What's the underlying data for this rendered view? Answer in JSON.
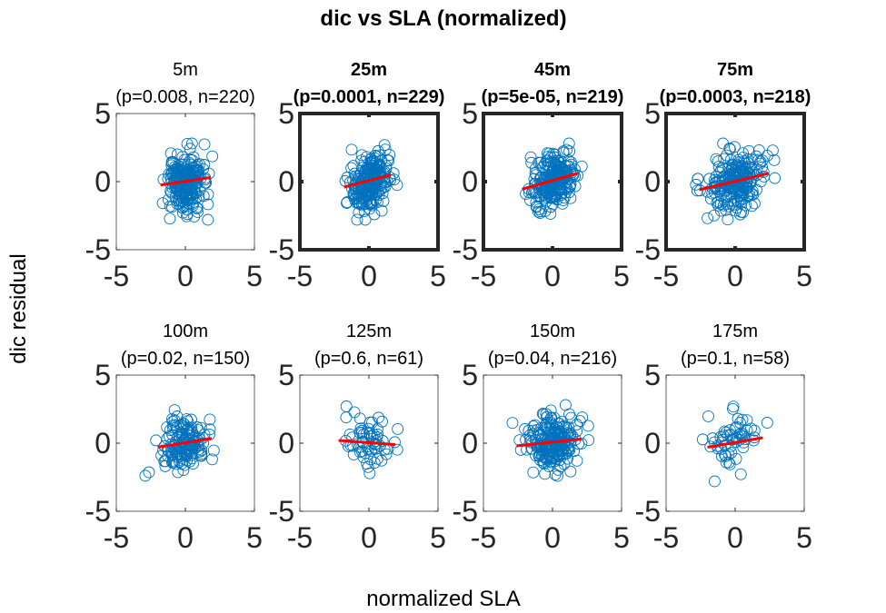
{
  "figure": {
    "title": "dic vs SLA (normalized)",
    "xlabel": "normalized SLA",
    "ylabel": "dic residual"
  },
  "colors": {
    "marker": "#0072BD",
    "fit_line": "#FF0000",
    "axes": "#262626",
    "background": "#FFFFFF"
  },
  "chart_data": [
    {
      "type": "scatter",
      "depth": "5m",
      "subtitle": "(p=0.008, n=220)",
      "bold": false,
      "n": 220,
      "fit": {
        "x": [
          -1.8,
          1.8
        ],
        "y": [
          -0.25,
          0.3
        ]
      },
      "cloud": {
        "sx": 0.75,
        "sy": 1.05,
        "r": 0.15
      },
      "xlim": [
        -5,
        5
      ],
      "ylim": [
        -5,
        5
      ],
      "xticks": [
        "-5",
        "0",
        "5"
      ],
      "yticks": [
        "5",
        "0",
        "-5"
      ]
    },
    {
      "type": "scatter",
      "depth": "25m",
      "subtitle": "(p=0.0001, n=229)",
      "bold": true,
      "n": 229,
      "fit": {
        "x": [
          -1.8,
          1.6
        ],
        "y": [
          -0.4,
          0.5
        ]
      },
      "cloud": {
        "sx": 0.75,
        "sy": 1.05,
        "r": 0.25
      },
      "xlim": [
        -5,
        5
      ],
      "ylim": [
        -5,
        5
      ],
      "xticks": [
        "-5",
        "0",
        "5"
      ],
      "yticks": [
        "5",
        "0",
        "-5"
      ]
    },
    {
      "type": "scatter",
      "depth": "45m",
      "subtitle": "(p=5e-05, n=219)",
      "bold": true,
      "n": 219,
      "fit": {
        "x": [
          -2.2,
          1.8
        ],
        "y": [
          -0.55,
          0.6
        ]
      },
      "cloud": {
        "sx": 0.85,
        "sy": 1.05,
        "r": 0.3
      },
      "xlim": [
        -5,
        5
      ],
      "ylim": [
        -5,
        5
      ],
      "xticks": [
        "-5",
        "0",
        "5"
      ],
      "yticks": [
        "5",
        "0",
        "-5"
      ]
    },
    {
      "type": "scatter",
      "depth": "75m",
      "subtitle": "(p=0.0003, n=218)",
      "bold": true,
      "n": 218,
      "fit": {
        "x": [
          -2.6,
          2.4
        ],
        "y": [
          -0.6,
          0.6
        ]
      },
      "cloud": {
        "sx": 1.0,
        "sy": 1.05,
        "r": 0.25
      },
      "xlim": [
        -5,
        5
      ],
      "ylim": [
        -5,
        5
      ],
      "xticks": [
        "-5",
        "0",
        "5"
      ],
      "yticks": [
        "5",
        "0",
        "-5"
      ]
    },
    {
      "type": "scatter",
      "depth": "100m",
      "subtitle": "(p=0.02, n=150)",
      "bold": false,
      "n": 150,
      "fit": {
        "x": [
          -2.0,
          1.9
        ],
        "y": [
          -0.3,
          0.35
        ]
      },
      "cloud": {
        "sx": 0.9,
        "sy": 0.95,
        "r": 0.15
      },
      "xlim": [
        -5,
        5
      ],
      "ylim": [
        -5,
        5
      ],
      "xticks": [
        "-5",
        "0",
        "5"
      ],
      "yticks": [
        "5",
        "0",
        "-5"
      ]
    },
    {
      "type": "scatter",
      "depth": "125m",
      "subtitle": "(p=0.6, n=61)",
      "bold": false,
      "n": 61,
      "fit": {
        "x": [
          -2.2,
          1.9
        ],
        "y": [
          0.2,
          -0.1
        ]
      },
      "cloud": {
        "sx": 1.0,
        "sy": 0.95,
        "r": -0.05
      },
      "xlim": [
        -5,
        5
      ],
      "ylim": [
        -5,
        5
      ],
      "xticks": [
        "-5",
        "0",
        "5"
      ],
      "yticks": [
        "5",
        "0",
        "-5"
      ]
    },
    {
      "type": "scatter",
      "depth": "150m",
      "subtitle": "(p=0.04, n=216)",
      "bold": false,
      "n": 216,
      "fit": {
        "x": [
          -2.6,
          2.1
        ],
        "y": [
          -0.2,
          0.3
        ]
      },
      "cloud": {
        "sx": 0.9,
        "sy": 1.0,
        "r": 0.12
      },
      "xlim": [
        -5,
        5
      ],
      "ylim": [
        -5,
        5
      ],
      "xticks": [
        "-5",
        "0",
        "5"
      ],
      "yticks": [
        "5",
        "0",
        "-5"
      ]
    },
    {
      "type": "scatter",
      "depth": "175m",
      "subtitle": "(p=0.1, n=58)",
      "bold": false,
      "n": 58,
      "fit": {
        "x": [
          -2.0,
          2.0
        ],
        "y": [
          -0.3,
          0.4
        ]
      },
      "cloud": {
        "sx": 0.95,
        "sy": 0.95,
        "r": 0.15
      },
      "xlim": [
        -5,
        5
      ],
      "ylim": [
        -5,
        5
      ],
      "xticks": [
        "-5",
        "0",
        "5"
      ],
      "yticks": [
        "5",
        "0",
        "-5"
      ]
    }
  ]
}
